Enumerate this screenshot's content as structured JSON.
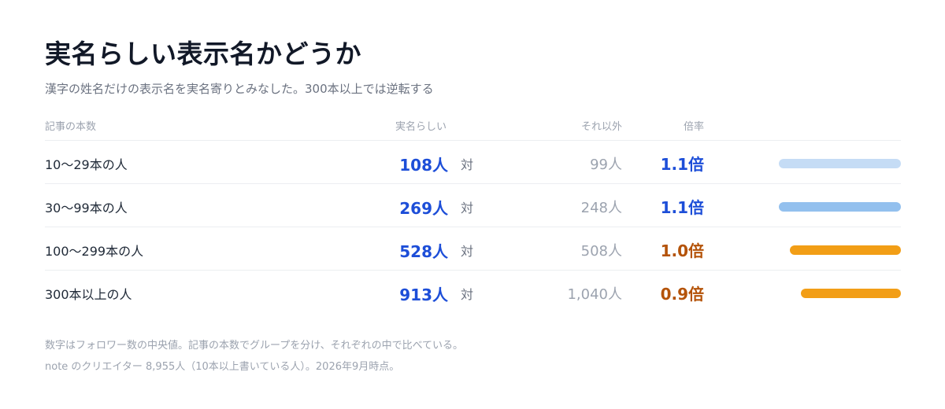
{
  "title": "実名らしい表示名かどうか",
  "subtitle": "漢字の姓名だけの表示名を実名寄りとみなした。300本以上では逆転する",
  "headers": {
    "category": "記事の本数",
    "named": "実名らしい",
    "other": "それ以外",
    "ratio": "倍率"
  },
  "vs_label": "対",
  "colors": {
    "named_text": "#1d4ed8",
    "ratio_high": "#1d4ed8",
    "ratio_low": "#b45309",
    "bar_light": "#c5dcf5",
    "bar_mid": "#93c0ee",
    "bar_orange": "#f29e16"
  },
  "chart_data": {
    "type": "table",
    "categories": [
      "10〜29本の人",
      "30〜99本の人",
      "100〜299本の人",
      "300本以上の人"
    ],
    "series": [
      {
        "name": "実名らしい",
        "values": [
          108,
          269,
          528,
          913
        ],
        "display": [
          "108人",
          "269人",
          "528人",
          "913人"
        ]
      },
      {
        "name": "それ以外",
        "values": [
          99,
          248,
          508,
          1040
        ],
        "display": [
          "99人",
          "248人",
          "508人",
          "1,040人"
        ]
      },
      {
        "name": "倍率",
        "values": [
          1.1,
          1.1,
          1.0,
          0.9
        ],
        "display": [
          "1.1倍",
          "1.1倍",
          "1.0倍",
          "0.9倍"
        ]
      }
    ],
    "bar_colors": [
      "#c5dcf5",
      "#93c0ee",
      "#f29e16",
      "#f29e16"
    ],
    "ratio_colors": [
      "#1d4ed8",
      "#1d4ed8",
      "#b45309",
      "#b45309"
    ]
  },
  "footer": {
    "line1": "数字はフォロワー数の中央値。記事の本数でグループを分け、それぞれの中で比べている。",
    "line2": "note のクリエイター 8,955人（10本以上書いている人）。2026年9月時点。"
  }
}
